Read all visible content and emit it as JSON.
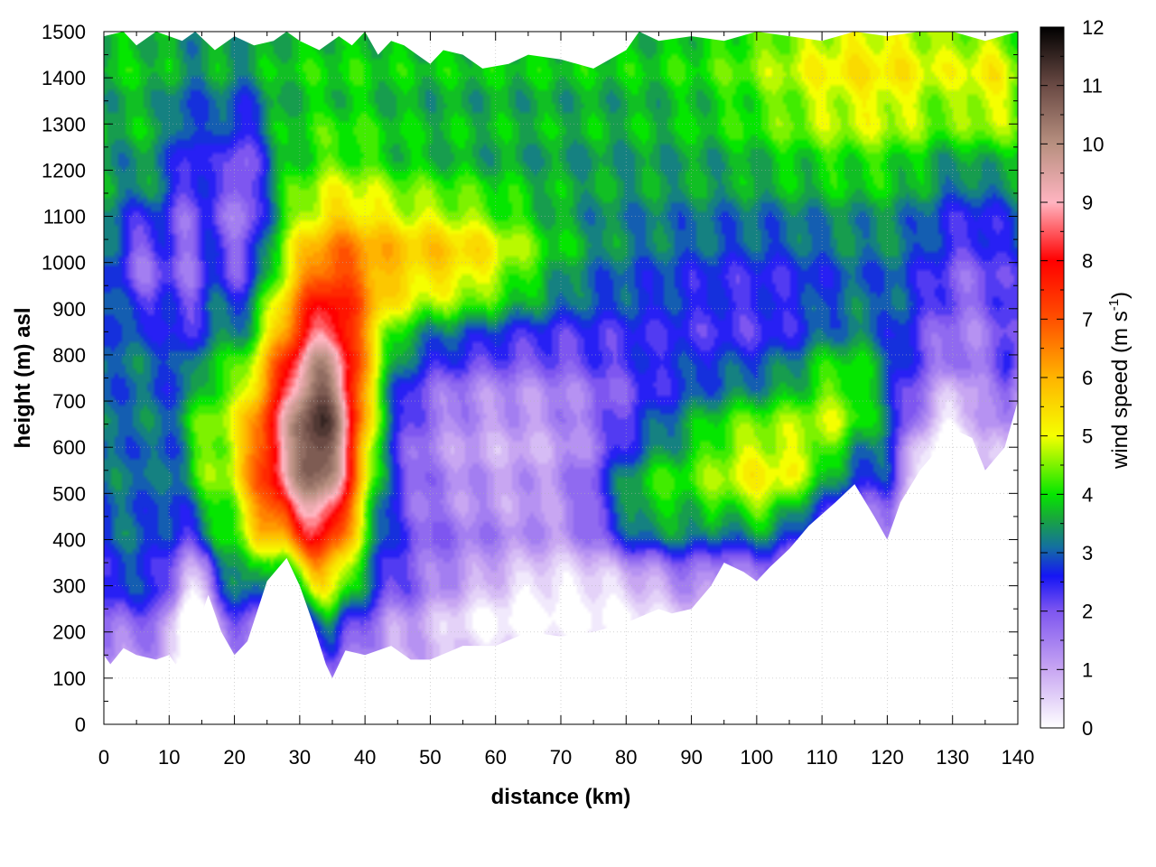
{
  "chart_data": {
    "type": "heatmap",
    "title": "",
    "xlabel": "distance (km)",
    "ylabel": "height (m) asl",
    "xlim": [
      0,
      140
    ],
    "ylim": [
      0,
      1500
    ],
    "x_ticks": [
      0,
      10,
      20,
      30,
      40,
      50,
      60,
      70,
      80,
      90,
      100,
      110,
      120,
      130,
      140
    ],
    "y_ticks": [
      0,
      100,
      200,
      300,
      400,
      500,
      600,
      700,
      800,
      900,
      1000,
      1100,
      1200,
      1300,
      1400,
      1500
    ],
    "grid": true,
    "colorbar": {
      "label_main": "wind speed (m s",
      "label_sup": "-1",
      "label_end": ")",
      "range": [
        0,
        12
      ],
      "ticks": [
        0,
        1,
        2,
        3,
        4,
        5,
        6,
        7,
        8,
        9,
        10,
        11,
        12
      ],
      "color_stops": [
        {
          "value": 0,
          "color": "#ffffff"
        },
        {
          "value": 1,
          "color": "#c8a6f2"
        },
        {
          "value": 2,
          "color": "#7e56f0"
        },
        {
          "value": 2.6,
          "color": "#1515f5"
        },
        {
          "value": 3.1,
          "color": "#1470a0"
        },
        {
          "value": 3.6,
          "color": "#18a83a"
        },
        {
          "value": 4,
          "color": "#05e600"
        },
        {
          "value": 5,
          "color": "#f5ff00"
        },
        {
          "value": 6,
          "color": "#ffb400"
        },
        {
          "value": 7,
          "color": "#ff5000"
        },
        {
          "value": 8,
          "color": "#ff0000"
        },
        {
          "value": 9,
          "color": "#ffb4c0"
        },
        {
          "value": 10,
          "color": "#b89080"
        },
        {
          "value": 11,
          "color": "#6a4a44"
        },
        {
          "value": 12,
          "color": "#000000"
        }
      ]
    },
    "terrain_height": {
      "x": [
        0,
        1,
        3,
        5,
        8,
        10,
        11,
        13,
        16,
        18,
        20,
        22,
        25,
        28,
        30,
        32,
        34,
        35,
        37,
        40,
        44,
        47,
        50,
        55,
        60,
        65,
        70,
        75,
        80,
        85,
        87,
        90,
        93,
        95,
        98,
        100,
        102,
        105,
        108,
        112,
        115,
        118,
        120,
        122,
        125,
        128,
        130,
        133,
        135,
        138,
        140
      ],
      "y": [
        150,
        130,
        165,
        150,
        140,
        150,
        130,
        160,
        280,
        200,
        150,
        180,
        310,
        360,
        300,
        220,
        130,
        100,
        160,
        150,
        170,
        140,
        140,
        170,
        170,
        200,
        190,
        200,
        220,
        250,
        240,
        250,
        300,
        350,
        330,
        310,
        340,
        380,
        430,
        480,
        520,
        450,
        400,
        480,
        550,
        600,
        640,
        620,
        550,
        600,
        700
      ]
    },
    "top_boundary": {
      "x": [
        0,
        3,
        5,
        8,
        10,
        12,
        14,
        17,
        20,
        23,
        26,
        28,
        30,
        33,
        36,
        38,
        40,
        42,
        44,
        46,
        48,
        50,
        52,
        55,
        58,
        62,
        65,
        70,
        75,
        80,
        82,
        85,
        90,
        95,
        100,
        105,
        110,
        115,
        120,
        125,
        130,
        135,
        140
      ],
      "y": [
        1490,
        1500,
        1470,
        1500,
        1490,
        1480,
        1500,
        1460,
        1490,
        1470,
        1480,
        1500,
        1480,
        1460,
        1490,
        1470,
        1500,
        1450,
        1480,
        1470,
        1450,
        1430,
        1460,
        1450,
        1420,
        1430,
        1450,
        1440,
        1420,
        1460,
        1500,
        1480,
        1490,
        1480,
        1500,
        1490,
        1480,
        1500,
        1490,
        1500,
        1500,
        1480,
        1500
      ]
    },
    "wind_features": [
      {
        "x": 33,
        "y": 600,
        "rx": 7,
        "ry": 300,
        "speed": 7.5
      },
      {
        "x": 36,
        "y": 850,
        "rx": 8,
        "ry": 350,
        "speed": 2.0
      },
      {
        "x": 48,
        "y": 1000,
        "rx": 14,
        "ry": 160,
        "speed": 2.0
      },
      {
        "x": 60,
        "y": 1000,
        "rx": 12,
        "ry": 120,
        "speed": 1.0
      },
      {
        "x": 24,
        "y": 560,
        "rx": 6,
        "ry": 260,
        "speed": 3.0
      },
      {
        "x": 15,
        "y": 620,
        "rx": 4,
        "ry": 220,
        "speed": 1.5
      },
      {
        "x": 4,
        "y": 480,
        "rx": 5,
        "ry": 280,
        "speed": 0.5
      },
      {
        "x": 21,
        "y": 1120,
        "rx": 4,
        "ry": 240,
        "speed": -2.0
      },
      {
        "x": 6,
        "y": 1000,
        "rx": 4,
        "ry": 120,
        "speed": -1.5
      },
      {
        "x": 13,
        "y": 1050,
        "rx": 3,
        "ry": 350,
        "speed": -1.5
      },
      {
        "x": 13,
        "y": 250,
        "rx": 2.5,
        "ry": 150,
        "speed": -2.5
      },
      {
        "x": 63,
        "y": 620,
        "rx": 24,
        "ry": 260,
        "speed": -1.8
      },
      {
        "x": 75,
        "y": 300,
        "rx": 14,
        "ry": 120,
        "speed": -1.5
      },
      {
        "x": 57,
        "y": 250,
        "rx": 12,
        "ry": 100,
        "speed": -1.0
      },
      {
        "x": 100,
        "y": 550,
        "rx": 15,
        "ry": 180,
        "speed": 2.5
      },
      {
        "x": 82,
        "y": 480,
        "rx": 7,
        "ry": 130,
        "speed": 1.5
      },
      {
        "x": 113,
        "y": 720,
        "rx": 7,
        "ry": 140,
        "speed": 1.2
      },
      {
        "x": 100,
        "y": 900,
        "rx": 14,
        "ry": 180,
        "speed": -0.8
      },
      {
        "x": 118,
        "y": 1400,
        "rx": 20,
        "ry": 200,
        "speed": 1.5
      },
      {
        "x": 133,
        "y": 850,
        "rx": 8,
        "ry": 400,
        "speed": -1.4
      },
      {
        "x": 126,
        "y": 600,
        "rx": 6,
        "ry": 200,
        "speed": -1.2
      },
      {
        "x": 136,
        "y": 1350,
        "rx": 5,
        "ry": 150,
        "speed": 1.0
      }
    ]
  }
}
